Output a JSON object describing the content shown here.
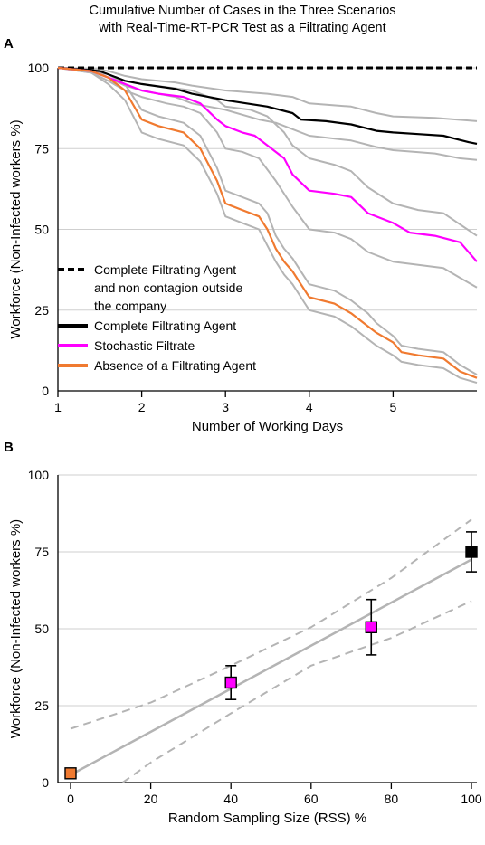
{
  "figure": {
    "title_line1": "Cumulative Number of Cases in the Three Scenarios",
    "title_line2": "with Real-Time-RT-PCR Test as a Filtrating Agent"
  },
  "chart_data": [
    {
      "panel": "A",
      "type": "line",
      "xlabel": "Number of Working Days",
      "ylabel": "Workforce (Non-Infected workers %)",
      "xlim": [
        1,
        6
      ],
      "ylim": [
        0,
        100
      ],
      "xticks": [
        1,
        2,
        3,
        4,
        5
      ],
      "yticks": [
        0,
        25,
        50,
        75,
        100
      ],
      "grid": "horizontal",
      "legend_position": "lower-left",
      "legend": [
        {
          "lines": [
            "Complete Filtrating Agent",
            "and non contagion outside",
            "the company"
          ],
          "color": "#000000",
          "style": "dashed"
        },
        {
          "lines": [
            "Complete Filtrating Agent"
          ],
          "color": "#000000",
          "style": "solid"
        },
        {
          "lines": [
            "Stochastic Filtrate"
          ],
          "color": "#ff00ff",
          "style": "solid"
        },
        {
          "lines": [
            "Absence of a Filtrating Agent"
          ],
          "color": "#f07a30",
          "style": "solid"
        }
      ],
      "series": [
        {
          "name": "Complete Filtrating Agent and non contagion outside the company",
          "color": "#000000",
          "style": "dashed",
          "x": [
            1,
            6
          ],
          "y": [
            100,
            100
          ]
        },
        {
          "name": "Complete Filtrating Agent",
          "color": "#000000",
          "style": "solid",
          "x": [
            1,
            1.3,
            1.5,
            1.6,
            1.8,
            2.0,
            2.4,
            2.6,
            3.0,
            3.5,
            3.8,
            3.9,
            4.2,
            4.5,
            4.8,
            5.0,
            5.3,
            5.6,
            5.9,
            6.0
          ],
          "y": [
            100,
            99.5,
            99,
            98,
            96,
            95,
            93.5,
            92,
            90,
            88,
            86,
            84,
            83.5,
            82.5,
            80.5,
            80,
            79.5,
            79,
            77,
            76.5
          ]
        },
        {
          "name": "Complete Filtrating Agent upper",
          "color": "#b4b4b4",
          "style": "solid",
          "x": [
            1,
            1.3,
            1.5,
            1.6,
            1.8,
            2.0,
            2.4,
            2.6,
            3.0,
            3.5,
            3.8,
            4.0,
            4.5,
            4.8,
            5.0,
            5.5,
            6.0
          ],
          "y": [
            100,
            99.8,
            99.5,
            99,
            97.5,
            96.5,
            95.5,
            94.5,
            93,
            92,
            91,
            89,
            88,
            86,
            85,
            84.5,
            83.5
          ]
        },
        {
          "name": "Complete Filtrating Agent lower",
          "color": "#b4b4b4",
          "style": "solid",
          "x": [
            1,
            1.3,
            1.5,
            1.6,
            1.8,
            2.0,
            2.4,
            2.6,
            3.0,
            3.4,
            3.6,
            3.8,
            4.0,
            4.5,
            4.8,
            5.0,
            5.5,
            5.8,
            6.0
          ],
          "y": [
            100,
            99.2,
            98.5,
            97,
            94.5,
            93,
            91,
            89,
            87,
            84,
            83,
            81,
            79,
            77.5,
            75.5,
            74.5,
            73.5,
            72,
            71.5
          ]
        },
        {
          "name": "Stochastic Filtrate",
          "color": "#ff00ff",
          "style": "solid",
          "x": [
            1,
            1.4,
            1.6,
            1.8,
            2.0,
            2.2,
            2.5,
            2.7,
            2.9,
            3.0,
            3.2,
            3.35,
            3.5,
            3.7,
            3.8,
            4.0,
            4.3,
            4.5,
            4.7,
            5.0,
            5.2,
            5.5,
            5.8,
            6.0
          ],
          "y": [
            100,
            99,
            97,
            95,
            93,
            92,
            91,
            89,
            84,
            82,
            80,
            79,
            76,
            72,
            67,
            62,
            61,
            60,
            55,
            52,
            49,
            48,
            46,
            40
          ]
        },
        {
          "name": "Stochastic Filtrate upper",
          "color": "#b4b4b4",
          "style": "solid",
          "x": [
            1,
            1.4,
            1.6,
            1.8,
            2.0,
            2.3,
            2.6,
            2.9,
            3.0,
            3.3,
            3.5,
            3.7,
            3.8,
            4.0,
            4.3,
            4.5,
            4.7,
            5.0,
            5.3,
            5.6,
            6.0
          ],
          "y": [
            100,
            99.5,
            98,
            96,
            95,
            94,
            93,
            90,
            88,
            87,
            85,
            80,
            76,
            72,
            70,
            68,
            63,
            58,
            56,
            55,
            48
          ]
        },
        {
          "name": "Stochastic Filtrate lower",
          "color": "#b4b4b4",
          "style": "solid",
          "x": [
            1,
            1.4,
            1.6,
            1.8,
            2.0,
            2.3,
            2.5,
            2.7,
            2.9,
            3.0,
            3.2,
            3.4,
            3.6,
            3.8,
            4.0,
            4.3,
            4.5,
            4.7,
            5.0,
            5.3,
            5.6,
            5.8,
            6.0
          ],
          "y": [
            100,
            98.5,
            96,
            93,
            91,
            89,
            88,
            86,
            80,
            75,
            74,
            72,
            65,
            57,
            50,
            49,
            47,
            43,
            40,
            39,
            38,
            35,
            32
          ]
        },
        {
          "name": "Absence of a Filtrating Agent",
          "color": "#f07a30",
          "style": "solid",
          "x": [
            1,
            1.4,
            1.6,
            1.8,
            2.0,
            2.2,
            2.5,
            2.7,
            2.9,
            3.0,
            3.2,
            3.4,
            3.5,
            3.6,
            3.7,
            3.8,
            3.9,
            4.0,
            4.3,
            4.5,
            4.6,
            4.7,
            4.8,
            5.0,
            5.1,
            5.3,
            5.6,
            5.8,
            6.0
          ],
          "y": [
            100,
            99,
            97,
            93,
            84,
            82,
            80,
            75,
            65,
            58,
            56,
            54,
            50,
            44,
            40,
            37,
            33,
            29,
            27,
            24,
            22,
            20,
            18,
            15,
            12,
            11,
            10,
            6,
            4
          ]
        },
        {
          "name": "Absence of a Filtrating Agent upper",
          "color": "#b4b4b4",
          "style": "solid",
          "x": [
            1,
            1.4,
            1.6,
            1.8,
            2.0,
            2.2,
            2.5,
            2.7,
            2.9,
            3.0,
            3.2,
            3.4,
            3.5,
            3.6,
            3.7,
            3.8,
            3.9,
            4.0,
            4.3,
            4.5,
            4.6,
            4.7,
            4.8,
            5.0,
            5.1,
            5.3,
            5.6,
            5.8,
            6.0
          ],
          "y": [
            100,
            99.5,
            98,
            95,
            87,
            85,
            83,
            79,
            69,
            62,
            60,
            58,
            55,
            48,
            44,
            41,
            37,
            33,
            31,
            28,
            26,
            24,
            21,
            17,
            14,
            13,
            12,
            8,
            5
          ]
        },
        {
          "name": "Absence of a Filtrating Agent lower",
          "color": "#b4b4b4",
          "style": "solid",
          "x": [
            1,
            1.4,
            1.6,
            1.8,
            2.0,
            2.2,
            2.5,
            2.7,
            2.9,
            3.0,
            3.2,
            3.4,
            3.5,
            3.6,
            3.7,
            3.8,
            3.9,
            4.0,
            4.3,
            4.5,
            4.6,
            4.7,
            4.8,
            5.0,
            5.1,
            5.3,
            5.6,
            5.8,
            6.0
          ],
          "y": [
            100,
            98.5,
            95,
            90,
            80,
            78,
            76,
            71,
            61,
            54,
            52,
            50,
            45,
            40,
            36,
            33,
            29,
            25,
            23,
            20,
            18,
            16,
            14,
            11,
            9,
            8,
            7,
            4,
            2.5
          ]
        }
      ]
    },
    {
      "panel": "B",
      "type": "scatter",
      "xlabel": "Random Sampling Size (RSS) %",
      "ylabel": "Workforce (Non-Infected workers %)",
      "xlim": [
        -3,
        102
      ],
      "ylim": [
        0,
        100
      ],
      "xticks": [
        0,
        20,
        40,
        60,
        80,
        100
      ],
      "yticks": [
        0,
        25,
        50,
        75,
        100
      ],
      "grid": "horizontal",
      "points": [
        {
          "x": 0,
          "y": 3,
          "err_low": 3,
          "err_high": 3,
          "color": "#f07a30"
        },
        {
          "x": 40,
          "y": 32.5,
          "err_low": 27,
          "err_high": 38,
          "color": "#ff00ff"
        },
        {
          "x": 75,
          "y": 50.5,
          "err_low": 41.5,
          "err_high": 59.5,
          "color": "#ff00ff"
        },
        {
          "x": 100,
          "y": 75,
          "err_low": 68.5,
          "err_high": 81.5,
          "color": "#000000"
        }
      ],
      "fit_line": {
        "x": [
          0,
          100
        ],
        "y": [
          2.5,
          72.5
        ],
        "color": "#b4b4b4"
      },
      "confidence_bands": [
        {
          "x": [
            0,
            20,
            40,
            60,
            80,
            100
          ],
          "y": [
            17.5,
            26,
            38,
            50.5,
            66.5,
            85.5
          ]
        },
        {
          "x": [
            13,
            20,
            40,
            60,
            80,
            100
          ],
          "y": [
            0,
            6.5,
            22.5,
            38,
            47,
            59
          ]
        }
      ]
    }
  ]
}
